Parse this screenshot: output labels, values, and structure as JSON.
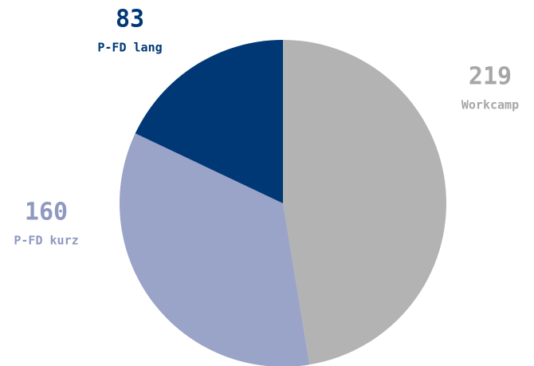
{
  "chart_data": {
    "type": "pie",
    "categories": [
      "Workcamp",
      "P-FD kurz",
      "P-FD lang"
    ],
    "values": [
      219,
      160,
      83
    ],
    "colors": [
      "#b3b3b3",
      "#9aa3c8",
      "#003876"
    ],
    "label_colors": [
      "#a6a6a6",
      "#8f98c0",
      "#003876"
    ]
  }
}
